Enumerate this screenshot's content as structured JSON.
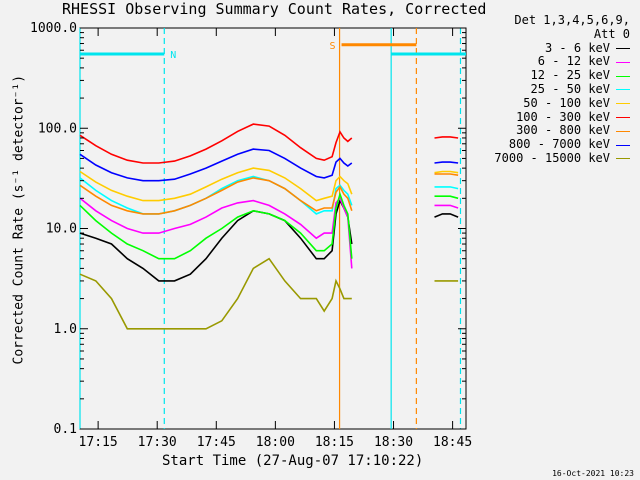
{
  "chart_data": {
    "type": "line",
    "title": "RHESSI Observing Summary Count Rates, Corrected",
    "xlabel": "Start Time (27-Aug-07 17:10:22)",
    "ylabel": "Corrected Count Rate (s⁻¹ detector⁻¹)",
    "yscale": "log",
    "ylim": [
      0.1,
      1000
    ],
    "xlim_minutes": [
      0,
      98
    ],
    "x_ticks": [
      {
        "label": "17:15",
        "t": 4.6
      },
      {
        "label": "17:30",
        "t": 19.6
      },
      {
        "label": "17:45",
        "t": 34.6
      },
      {
        "label": "18:00",
        "t": 49.6
      },
      {
        "label": "18:15",
        "t": 64.6
      },
      {
        "label": "18:30",
        "t": 79.6
      },
      {
        "label": "18:45",
        "t": 94.6
      }
    ],
    "y_ticks": [
      {
        "label": "1000.0",
        "v": 1000
      },
      {
        "label": "100.0",
        "v": 100
      },
      {
        "label": "10.0",
        "v": 10
      },
      {
        "label": "1.0",
        "v": 1
      },
      {
        "label": "0.1",
        "v": 0.1
      }
    ],
    "detectors": "Det 1,3,4,5,6,9,",
    "attenuator": "Att 0",
    "x_samples_minutes": [
      0,
      4,
      8,
      12,
      16,
      20,
      24,
      28,
      32,
      36,
      40,
      44,
      48,
      52,
      56,
      60,
      62,
      64,
      65,
      66,
      67,
      68,
      69,
      80,
      81,
      90,
      92,
      94,
      96
    ],
    "series": [
      {
        "name": "3 - 6 keV",
        "color": "#000000",
        "values": [
          9,
          8,
          7,
          5,
          4,
          3,
          3,
          3.5,
          5,
          8,
          12,
          15,
          14,
          12,
          8,
          5,
          5,
          6,
          14,
          19,
          16,
          13,
          7,
          null,
          null,
          13,
          14,
          14,
          13
        ]
      },
      {
        "name": "6 - 12 keV",
        "color": "#ff00ff",
        "values": [
          20,
          15,
          12,
          10,
          9,
          9,
          10,
          11,
          13,
          16,
          18,
          19,
          17,
          14,
          11,
          8,
          9,
          9,
          18,
          20,
          16,
          13,
          4,
          null,
          null,
          17,
          17,
          17,
          16
        ]
      },
      {
        "name": "12 - 25 keV",
        "color": "#00ff00",
        "values": [
          17,
          12,
          9,
          7,
          6,
          5,
          5,
          6,
          8,
          10,
          13,
          15,
          14,
          12,
          9,
          6,
          6,
          7,
          16,
          22,
          17,
          14,
          5,
          null,
          null,
          21,
          21,
          21,
          20
        ]
      },
      {
        "name": "25 - 50 keV",
        "color": "#00ffff",
        "values": [
          32,
          24,
          19,
          16,
          14,
          14,
          15,
          17,
          20,
          25,
          30,
          33,
          30,
          25,
          19,
          14,
          15,
          15,
          25,
          27,
          24,
          22,
          17,
          null,
          null,
          26,
          26,
          26,
          25
        ]
      },
      {
        "name": "50 - 100 keV",
        "color": "#ffcc00",
        "values": [
          37,
          29,
          24,
          21,
          19,
          19,
          20,
          22,
          26,
          31,
          36,
          40,
          38,
          32,
          25,
          19,
          20,
          21,
          30,
          33,
          30,
          28,
          22,
          null,
          null,
          36,
          37,
          37,
          36
        ]
      },
      {
        "name": "100 - 300 keV",
        "color": "#ff0000",
        "values": [
          85,
          67,
          55,
          48,
          45,
          45,
          47,
          53,
          62,
          75,
          93,
          110,
          105,
          85,
          64,
          50,
          48,
          52,
          72,
          92,
          80,
          74,
          80,
          null,
          null,
          80,
          82,
          82,
          80
        ]
      },
      {
        "name": "300 - 800 keV",
        "color": "#ff8800",
        "values": [
          27,
          21,
          17,
          15,
          14,
          14,
          15,
          17,
          20,
          24,
          29,
          32,
          30,
          25,
          19,
          15,
          16,
          16,
          23,
          26,
          22,
          20,
          15,
          null,
          null,
          35,
          35,
          35,
          34
        ]
      },
      {
        "name": "800 - 7000 keV",
        "color": "#0000ff",
        "values": [
          55,
          43,
          36,
          32,
          30,
          30,
          31,
          35,
          40,
          47,
          55,
          62,
          60,
          50,
          40,
          33,
          32,
          34,
          46,
          50,
          45,
          42,
          45,
          null,
          null,
          45,
          46,
          46,
          45
        ]
      },
      {
        "name": "7000 - 15000 keV",
        "color": "#999900",
        "values": [
          3.5,
          3,
          2,
          1,
          1,
          1,
          1,
          1,
          1,
          1.2,
          2,
          4,
          5,
          3,
          2,
          2,
          1.5,
          2,
          3,
          2.5,
          2,
          2,
          2,
          null,
          null,
          3,
          3,
          3,
          3
        ]
      }
    ],
    "time_markers": [
      {
        "t": 0,
        "color": "#00e5ee",
        "style": "solid"
      },
      {
        "t": 21.4,
        "color": "#00e5ee",
        "style": "dashed"
      },
      {
        "t": 65.9,
        "color": "#ff8800",
        "style": "solid"
      },
      {
        "t": 79.0,
        "color": "#00e5ee",
        "style": "solid"
      },
      {
        "t": 85.4,
        "color": "#ff8800",
        "style": "dashed"
      },
      {
        "t": 96.6,
        "color": "#00e5ee",
        "style": "dashed"
      }
    ],
    "flag_bars": [
      {
        "label": "N",
        "color": "#00e5ee",
        "segments": [
          [
            0,
            21.4
          ],
          [
            79.0,
            98
          ]
        ],
        "level": 550
      },
      {
        "label": "S",
        "color": "#ff8800",
        "segments": [
          [
            66.4,
            85.4
          ]
        ],
        "level": 680
      }
    ]
  },
  "footer": {
    "date": "16-Oct-2021 10:23"
  }
}
